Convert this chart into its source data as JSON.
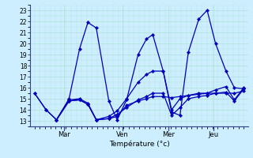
{
  "xlabel": "Température (°c)",
  "background_color": "#cceeff",
  "grid_color": "#aaddcc",
  "line_color": "#0000bb",
  "yticks": [
    13,
    14,
    15,
    16,
    17,
    18,
    19,
    20,
    21,
    22,
    23
  ],
  "ylim": [
    12.5,
    23.5
  ],
  "day_labels": [
    "Mar",
    "Ven",
    "Mer",
    "Jeu"
  ],
  "day_positions": [
    0.14,
    0.42,
    0.64,
    0.855
  ],
  "lines": [
    {
      "x": [
        0.0,
        0.055,
        0.105,
        0.165,
        0.215,
        0.255,
        0.295,
        0.355,
        0.395,
        0.44,
        0.495,
        0.535,
        0.565,
        0.615,
        0.655,
        0.695,
        0.735,
        0.785,
        0.825,
        0.865,
        0.915,
        0.955,
        1.0
      ],
      "y": [
        15.5,
        14.0,
        13.1,
        15.0,
        19.5,
        21.9,
        21.4,
        14.8,
        13.1,
        14.9,
        19.0,
        20.4,
        20.8,
        17.5,
        13.8,
        13.5,
        19.2,
        22.2,
        23.0,
        20.0,
        17.5,
        16.0,
        15.9
      ]
    },
    {
      "x": [
        0.0,
        0.055,
        0.105,
        0.165,
        0.215,
        0.255,
        0.295,
        0.355,
        0.395,
        0.44,
        0.495,
        0.535,
        0.565,
        0.615,
        0.655,
        0.695,
        0.735,
        0.785,
        0.825,
        0.865,
        0.915,
        0.955,
        1.0
      ],
      "y": [
        15.5,
        14.0,
        13.1,
        14.9,
        15.0,
        14.6,
        13.1,
        13.2,
        13.4,
        14.4,
        14.8,
        15.0,
        15.2,
        15.2,
        15.1,
        15.2,
        15.3,
        15.4,
        15.5,
        15.5,
        15.5,
        15.5,
        15.7
      ]
    },
    {
      "x": [
        0.105,
        0.165,
        0.215,
        0.255,
        0.295,
        0.355,
        0.395,
        0.44,
        0.495,
        0.535,
        0.565,
        0.615,
        0.655,
        0.695,
        0.735,
        0.785,
        0.825,
        0.865,
        0.915,
        0.955,
        1.0
      ],
      "y": [
        13.1,
        14.8,
        14.9,
        14.5,
        13.1,
        13.4,
        13.9,
        15.0,
        16.5,
        17.2,
        17.5,
        17.5,
        14.0,
        15.0,
        15.3,
        15.5,
        15.5,
        15.8,
        16.1,
        14.9,
        16.0
      ]
    },
    {
      "x": [
        0.105,
        0.165,
        0.215,
        0.255,
        0.295,
        0.355,
        0.395,
        0.44,
        0.495,
        0.535,
        0.565,
        0.615,
        0.655,
        0.695,
        0.735,
        0.785,
        0.825,
        0.865,
        0.915,
        0.955,
        1.0
      ],
      "y": [
        13.1,
        14.8,
        14.9,
        14.5,
        13.1,
        13.2,
        13.6,
        14.2,
        14.9,
        15.2,
        15.5,
        15.5,
        13.5,
        14.2,
        15.0,
        15.2,
        15.3,
        15.5,
        15.6,
        14.8,
        15.9
      ]
    }
  ]
}
